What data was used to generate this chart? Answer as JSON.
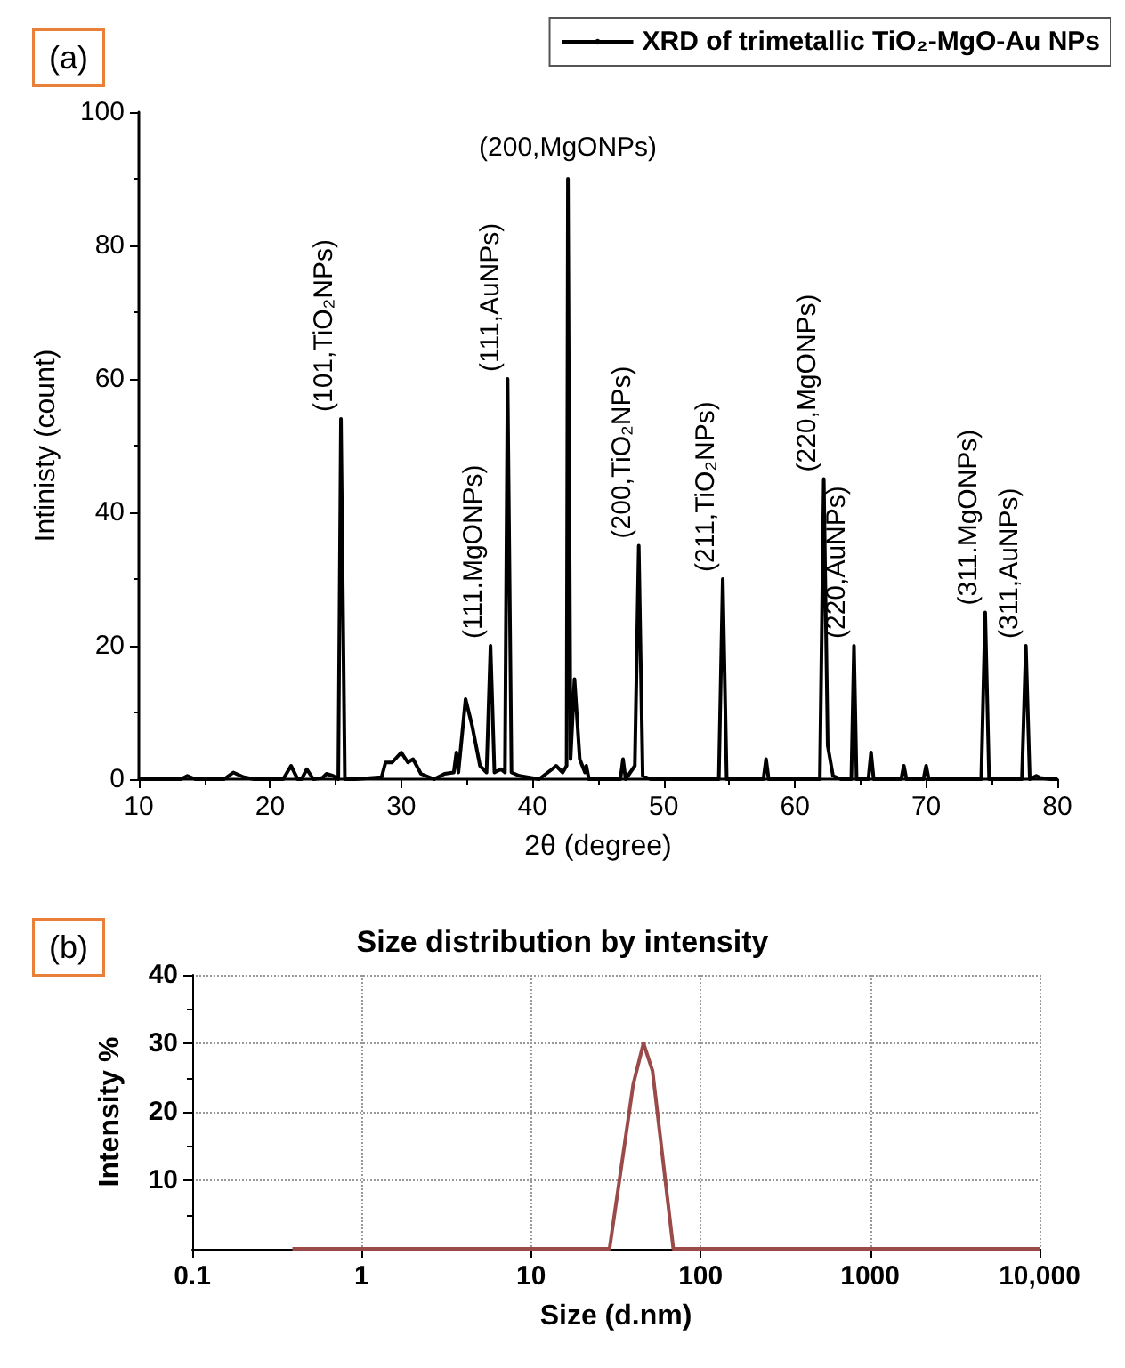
{
  "chart_data": [
    {
      "type": "line",
      "xlabel": "2θ (degree)",
      "ylabel": "Intinisty (count)",
      "xlim": [
        10,
        80
      ],
      "xticks": [
        10,
        20,
        30,
        40,
        50,
        60,
        70,
        80
      ],
      "ylim": [
        0,
        100
      ],
      "yticks": [
        0,
        20,
        40,
        60,
        80,
        100
      ],
      "grid": false,
      "legend": "top right",
      "marker": "none",
      "annotations": [
        "(a)",
        {
          "text": "(101,TiO₂NPs)",
          "x": 25.4,
          "y": 54
        },
        {
          "text": "(111.MgONPs)",
          "x": 36.8,
          "y": 20
        },
        {
          "text": "(111,AuNPs)",
          "x": 38.1,
          "y": 60
        },
        {
          "text": "(200,MgONPs)",
          "x": 42.7,
          "y": 90
        },
        {
          "text": "(200,TiO₂NPs)",
          "x": 48.1,
          "y": 35
        },
        {
          "text": "(211,TiO₂NPs)",
          "x": 54.5,
          "y": 30
        },
        {
          "text": "(220,MgONPs)",
          "x": 62.2,
          "y": 45
        },
        {
          "text": "(220,AuNPs)",
          "x": 64.5,
          "y": 20
        },
        {
          "text": "(311.MgONPs)",
          "x": 74.5,
          "y": 25
        },
        {
          "text": "(311,AuNPs)",
          "x": 77.6,
          "y": 20
        }
      ],
      "series": [
        {
          "name": "XRD of trimetallic TiO₂-MgO-Au NPs",
          "color": "#000000",
          "x": [
            10,
            13.2,
            13.7,
            14.3,
            16.5,
            17.2,
            18,
            18.8,
            21,
            21.6,
            22.1,
            22.4,
            22.8,
            23.3,
            24,
            24.3,
            24.8,
            25.2,
            25.4,
            25.7,
            26.5,
            28.5,
            28.8,
            29.3,
            30,
            30.5,
            30.9,
            31.5,
            32.5,
            33.3,
            34,
            34.2,
            34.35,
            34.9,
            35.4,
            36,
            36.5,
            36.8,
            37.1,
            37.6,
            37.9,
            38.1,
            38.4,
            39,
            40.5,
            41.5,
            41.8,
            42.3,
            42.6,
            42.7,
            42.9,
            43.2,
            43.6,
            44,
            44.1,
            44.3,
            46.7,
            46.9,
            47.1,
            47.8,
            48.1,
            48.4,
            49,
            54.2,
            54.5,
            54.8,
            57.6,
            57.8,
            58,
            61.9,
            62.2,
            62.5,
            62.9,
            63.5,
            64.3,
            64.5,
            64.7,
            65.6,
            65.8,
            66,
            68.1,
            68.3,
            68.5,
            69.8,
            70,
            70.2,
            74.2,
            74.5,
            74.8,
            77.3,
            77.6,
            77.9,
            78.4,
            78.7,
            79.5,
            80
          ],
          "values": [
            0,
            0,
            0.5,
            0,
            0,
            1,
            0.3,
            0,
            0,
            2,
            0,
            0,
            1.5,
            0,
            0.2,
            0.8,
            0.5,
            0,
            54,
            0,
            0,
            0.3,
            2.5,
            2.5,
            4,
            2.5,
            3,
            0.8,
            0,
            0.8,
            1,
            4,
            1,
            12,
            8,
            2,
            1,
            20,
            1,
            1.5,
            1,
            60,
            1,
            0.5,
            0,
            1.5,
            2,
            1,
            2,
            90,
            3,
            15,
            3,
            1,
            2,
            0,
            0,
            3,
            0,
            2,
            35,
            0.5,
            0,
            0,
            30,
            0,
            0,
            3,
            0,
            0,
            45,
            5,
            0.5,
            0,
            0,
            20,
            0,
            0,
            4,
            0,
            0,
            2,
            0,
            0,
            2,
            0,
            0,
            25,
            0,
            0,
            20,
            0,
            0.5,
            0.2,
            0,
            0
          ]
        }
      ]
    },
    {
      "type": "line",
      "title": "Size distribution by intensity",
      "xlabel": "Size (d.nm)",
      "ylabel": "Intensity %",
      "log": "x",
      "xlim": [
        0.1,
        10000
      ],
      "xticks": [
        0.1,
        1,
        10,
        100,
        1000,
        {
          "value": 10000,
          "label": "10,000"
        }
      ],
      "ylim": [
        0,
        40
      ],
      "yticks": [
        10,
        20,
        30,
        40
      ],
      "grid": true,
      "marker": "none",
      "annotations": [
        "(b)"
      ],
      "series": [
        {
          "color": "#9b4a4a",
          "x": [
            0.39,
            29,
            40,
            46,
            52,
            69,
            10000
          ],
          "values": [
            0,
            0,
            24,
            30,
            26,
            0,
            0
          ]
        }
      ]
    }
  ]
}
